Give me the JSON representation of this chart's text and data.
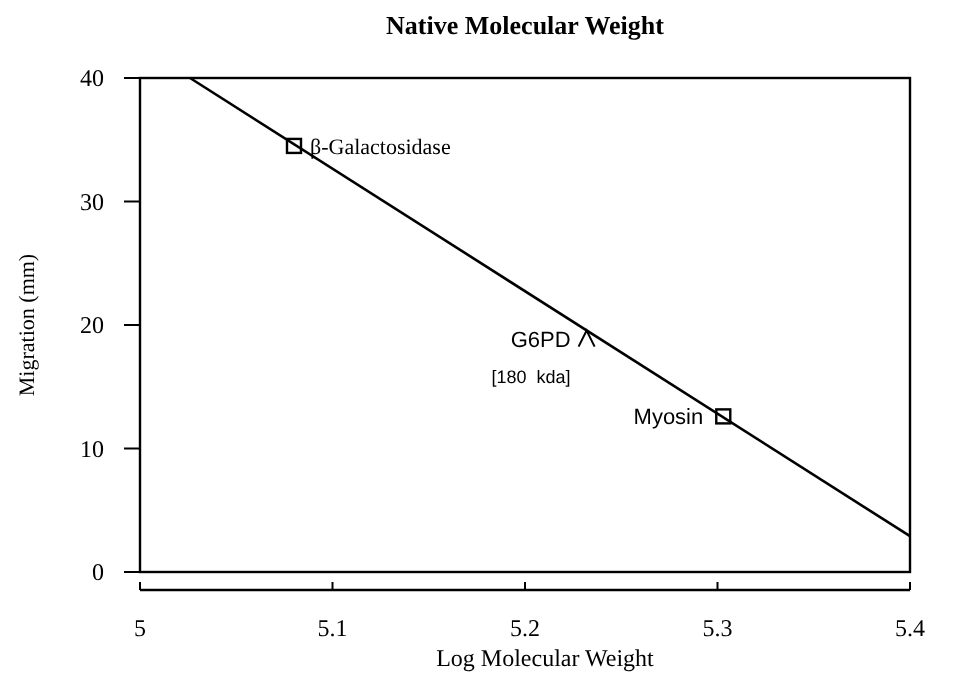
{
  "chart_data": {
    "type": "line",
    "title": "Native Molecular Weight",
    "xlabel": "Log Molecular Weight",
    "ylabel": "Migration (mm)",
    "xlim": [
      5,
      5.4
    ],
    "xticks": [
      5,
      5.1,
      5.2,
      5.3,
      5.4
    ],
    "ylim": [
      0,
      40
    ],
    "yticks": [
      0,
      10,
      20,
      30,
      40
    ],
    "grid": false,
    "series": [
      {
        "color": "#000000",
        "x": [
          5.026,
          5.4
        ],
        "values": [
          40,
          2.9
        ]
      },
      {
        "type": "scatter",
        "marker": "square",
        "color": "#000000",
        "x": [
          5.08,
          5.303
        ],
        "values": [
          34.5,
          12.6
        ]
      },
      {
        "type": "scatter",
        "marker": "cross",
        "color": "#000000",
        "x": [
          5.232
        ],
        "values": [
          18.9
        ]
      }
    ],
    "annotations": [
      {
        "text": "β-Galactosidase",
        "x": 5.08,
        "y": 34.5
      },
      {
        "text": "G6PD",
        "x": 5.232,
        "y": 18.9
      },
      {
        "text": "[180  kda]",
        "x": 5.232,
        "y": 18.9
      },
      {
        "text": "Myosin",
        "x": 5.303,
        "y": 12.6
      }
    ]
  }
}
